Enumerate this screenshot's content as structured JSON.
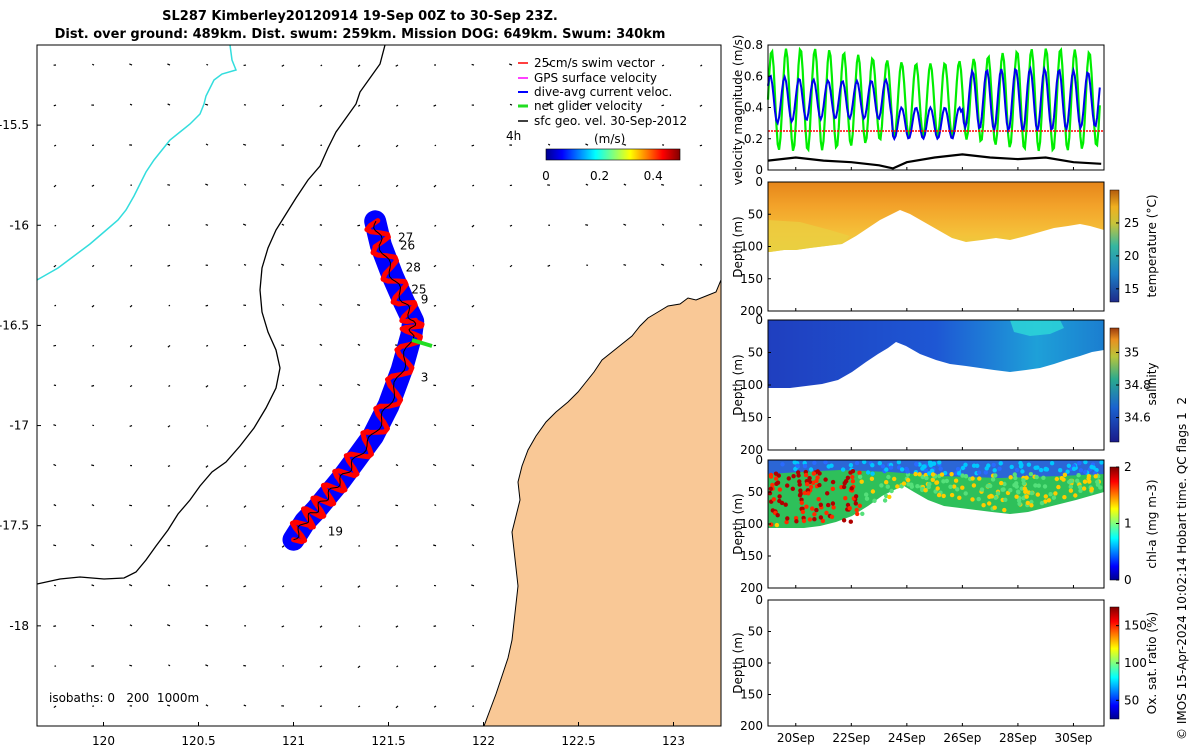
{
  "title_line1": "SL287 Kimberley20120914 19-Sep 00Z to 30-Sep 23Z.",
  "title_line2": "Dist. over ground: 489km. Dist. swum: 259km. Mission DOG: 649km. Swum: 340km",
  "side_label": "© IMOS 15-Apr-2024 10:02:14 Hobart time. QC flags 1  2",
  "colors": {
    "land": "#f9c896",
    "track_blue": "#0000ff",
    "track_red": "#ff0000",
    "coast_cyan": "#33dddd",
    "net_green": "#22dd22"
  },
  "chart_data": [
    {
      "type": "map",
      "xlabel": "",
      "ylabel": "",
      "xlim": [
        119.65,
        123.25
      ],
      "ylim": [
        -18.5,
        -15.1
      ],
      "x_ticks": [
        "120",
        "120.5",
        "121",
        "121.5",
        "122",
        "122.5",
        "123"
      ],
      "y_ticks": [
        "-15.5",
        "-16",
        "-16.5",
        "-17",
        "-17.5",
        "-18"
      ],
      "legend": {
        "placement": "top-right",
        "entries": [
          "25cm/s swim vector",
          "GPS surface velocity",
          "dive-avg current veloc.",
          "net glider velocity",
          "sfc geo. vel. 30-Sep-2012"
        ]
      },
      "colorbar": {
        "prefix": "4h",
        "label": "(m/s)",
        "ticks": [
          "0",
          "0.2",
          "0.4"
        ],
        "range": [
          0,
          0.5
        ]
      },
      "isobaths_label": "isobaths: 0   200  1000m",
      "day_labels": [
        {
          "text": "27",
          "lon": 121.55,
          "lat": -16.08
        },
        {
          "text": "26",
          "lon": 121.56,
          "lat": -16.12
        },
        {
          "text": "28",
          "lon": 121.59,
          "lat": -16.23
        },
        {
          "text": "25",
          "lon": 121.62,
          "lat": -16.34
        },
        {
          "text": "9",
          "lon": 121.67,
          "lat": -16.39
        },
        {
          "text": "3",
          "lon": 121.67,
          "lat": -16.78
        },
        {
          "text": "19",
          "lon": 121.18,
          "lat": -17.55
        }
      ],
      "track": [
        {
          "lon": 121.0,
          "lat": -17.57
        },
        {
          "lon": 121.06,
          "lat": -17.48
        },
        {
          "lon": 121.12,
          "lat": -17.42
        },
        {
          "lon": 121.18,
          "lat": -17.35
        },
        {
          "lon": 121.25,
          "lat": -17.27
        },
        {
          "lon": 121.32,
          "lat": -17.18
        },
        {
          "lon": 121.42,
          "lat": -17.05
        },
        {
          "lon": 121.5,
          "lat": -16.9
        },
        {
          "lon": 121.57,
          "lat": -16.72
        },
        {
          "lon": 121.62,
          "lat": -16.55
        },
        {
          "lon": 121.63,
          "lat": -16.48
        },
        {
          "lon": 121.58,
          "lat": -16.38
        },
        {
          "lon": 121.52,
          "lat": -16.25
        },
        {
          "lon": 121.46,
          "lat": -16.1
        },
        {
          "lon": 121.43,
          "lat": -15.98
        }
      ]
    },
    {
      "type": "line",
      "ylabel": "velocity magnitude (m/s)",
      "ylim": [
        0,
        0.8
      ],
      "y_ticks": [
        "0",
        "0.2",
        "0.4",
        "0.6",
        "0.8"
      ],
      "series": [
        {
          "color": "#00ee00",
          "oscillation": {
            "period_days": 0.52,
            "low": 0.12,
            "high": 0.78
          }
        },
        {
          "color": "#0000ee",
          "oscillation": {
            "period_days": 0.52,
            "low": 0.25,
            "high": 0.65
          }
        },
        {
          "color": "#ff0000",
          "constant": 0.25
        },
        {
          "color": "#000000",
          "points": [
            [
              19,
              0.06
            ],
            [
              20,
              0.08
            ],
            [
              21,
              0.06
            ],
            [
              22,
              0.05
            ],
            [
              23,
              0.03
            ],
            [
              23.5,
              0.01
            ],
            [
              24,
              0.05
            ],
            [
              25,
              0.08
            ],
            [
              26,
              0.1
            ],
            [
              27,
              0.08
            ],
            [
              28,
              0.07
            ],
            [
              29,
              0.08
            ],
            [
              30,
              0.05
            ],
            [
              31,
              0.04
            ]
          ]
        }
      ]
    },
    {
      "type": "heatmap",
      "ylabel": "Depth (m)",
      "ylim": [
        200,
        0
      ],
      "y_ticks": [
        "0",
        "50",
        "100",
        "150",
        "200"
      ],
      "colorbar_label": "temperature (°C)",
      "colorbar_ticks": [
        "15",
        "20",
        "25"
      ],
      "colorbar_range": [
        13,
        30
      ],
      "palette": "parula"
    },
    {
      "type": "heatmap",
      "ylabel": "Depth (m)",
      "ylim": [
        200,
        0
      ],
      "y_ticks": [
        "0",
        "50",
        "100",
        "150",
        "200"
      ],
      "colorbar_label": "salinity",
      "colorbar_ticks": [
        "34.6",
        "34.8",
        "35"
      ],
      "colorbar_range": [
        34.45,
        35.15
      ],
      "palette": "parula"
    },
    {
      "type": "scatter",
      "ylabel": "Depth (m)",
      "ylim": [
        200,
        0
      ],
      "y_ticks": [
        "0",
        "50",
        "100",
        "150",
        "200"
      ],
      "colorbar_label": "chl-a (mg m-3)",
      "colorbar_ticks": [
        "0",
        "1",
        "2"
      ],
      "colorbar_range": [
        0,
        2
      ],
      "palette": "jet"
    },
    {
      "type": "heatmap",
      "ylabel": "Depth (m)",
      "ylim": [
        200,
        0
      ],
      "y_ticks": [
        "0",
        "50",
        "100",
        "150",
        "200"
      ],
      "colorbar_label": "Ox. sat. ratio (%)",
      "colorbar_ticks": [
        "50",
        "100",
        "150"
      ],
      "colorbar_range": [
        25,
        175
      ],
      "palette": "jet",
      "xlim": [
        19,
        31.1
      ],
      "x_ticks": [
        "20Sep",
        "22Sep",
        "24Sep",
        "26Sep",
        "28Sep",
        "30Sep"
      ]
    }
  ]
}
